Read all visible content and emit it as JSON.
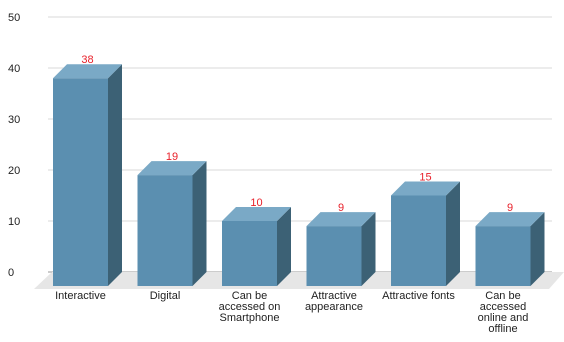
{
  "chart_data": {
    "type": "bar",
    "title": "",
    "xlabel": "",
    "ylabel": "",
    "ylim": [
      0,
      50
    ],
    "yticks": [
      0,
      10,
      20,
      30,
      40,
      50
    ],
    "grid": true,
    "style": "3d",
    "colors": {
      "front": "#5b8fb0",
      "top": "#7aa9c6",
      "side": "#3c6175",
      "floor": "#e6e6e6",
      "label": "#e8202a"
    },
    "categories": [
      "Interactive",
      "Digital",
      "Can be accessed on Smartphone",
      "Attractive appearance",
      "Attractive fonts",
      "Can be accessed online and offline"
    ],
    "category_lines": [
      [
        "Interactive"
      ],
      [
        "Digital"
      ],
      [
        "Can be",
        "accessed on",
        "Smartphone"
      ],
      [
        "Attractive",
        "appearance"
      ],
      [
        "Attractive fonts"
      ],
      [
        "Can be",
        "accessed",
        "online and",
        "offline"
      ]
    ],
    "values": [
      38,
      19,
      10,
      9,
      15,
      9
    ],
    "data_labels": [
      "38",
      "19",
      "10",
      "9",
      "15",
      "9"
    ]
  }
}
